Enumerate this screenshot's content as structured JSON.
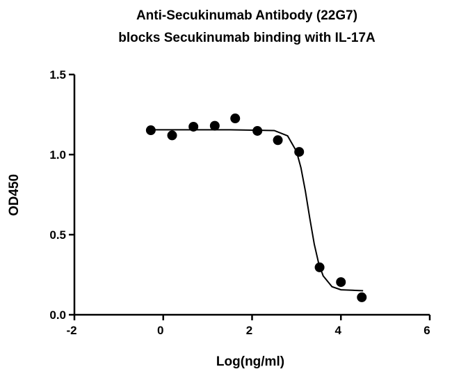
{
  "chart_data": {
    "type": "scatter",
    "title": [
      "Anti-Secukinumab Antibody (22G7)",
      "blocks Secukinumab binding with IL-17A"
    ],
    "x_label": "Log(ng/ml)",
    "y_label": "OD450",
    "xlim": [
      -2,
      6
    ],
    "xticks": [
      -2,
      0,
      2,
      4,
      6
    ],
    "ylim": [
      0,
      1.5
    ],
    "yticks": [
      {
        "value": 0,
        "label": "0.0"
      },
      0.5,
      {
        "value": 1,
        "label": "1.0"
      },
      1.5
    ],
    "color": "#000000",
    "x": [
      -0.28,
      0.2,
      0.68,
      1.16,
      1.62,
      2.12,
      2.58,
      3.06,
      3.52,
      4.0,
      4.47
    ],
    "values": [
      1.152,
      1.12,
      1.174,
      1.18,
      1.226,
      1.148,
      1.09,
      1.017,
      0.296,
      0.204,
      0.109
    ],
    "fit": {
      "x": [
        -0.28,
        0.5,
        1.5,
        2.5,
        2.8,
        3.0,
        3.1,
        3.2,
        3.3,
        3.4,
        3.5,
        3.6,
        3.8,
        4.0,
        4.5
      ],
      "values": [
        1.155,
        1.155,
        1.155,
        1.15,
        1.117,
        1.02,
        0.918,
        0.772,
        0.601,
        0.441,
        0.32,
        0.243,
        0.175,
        0.156,
        0.15
      ]
    }
  }
}
